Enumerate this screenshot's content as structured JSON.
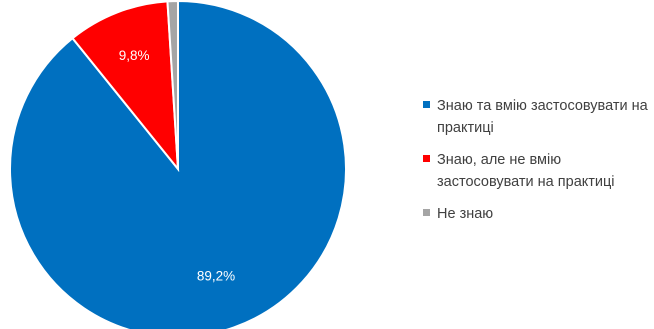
{
  "chart_data": {
    "type": "pie",
    "title": "",
    "slices": [
      {
        "label": "Знаю та вмію застосовувати на практиці",
        "value": 89.2,
        "value_label": "89,2%",
        "color": "#0070C0"
      },
      {
        "label": "Знаю, але не вмію застосовувати на практиці",
        "value": 9.8,
        "value_label": "9,8%",
        "color": "#FF0000"
      },
      {
        "label": "Не знаю",
        "value": 1.0,
        "value_label": "",
        "color": "#A5A5A5"
      }
    ],
    "legend_position": "right"
  }
}
